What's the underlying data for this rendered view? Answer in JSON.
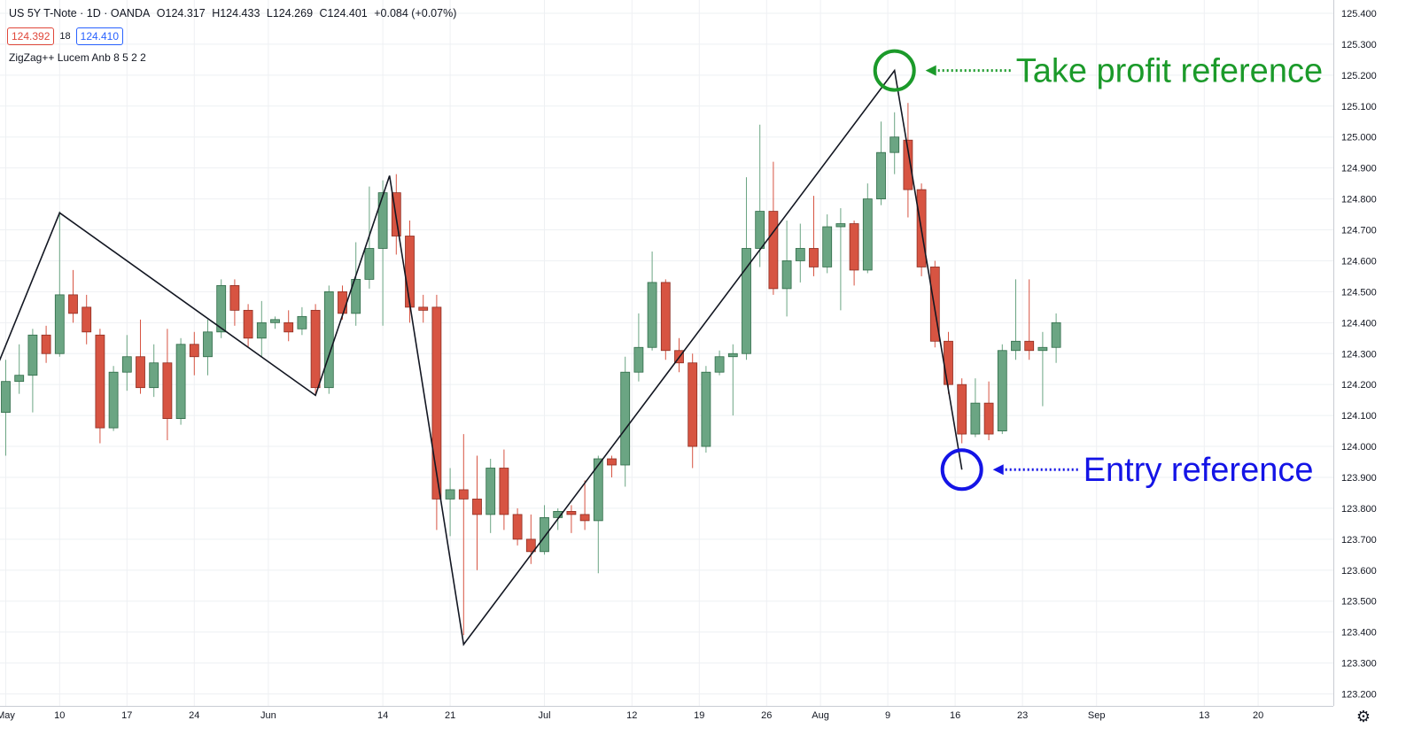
{
  "header": {
    "symbol": "US 5Y T-Note · 1D · OANDA",
    "open": "O124.317",
    "high": "H124.433",
    "low": "L124.269",
    "close": "C124.401",
    "change": "+0.084 (+0.07%)",
    "bid": "124.392",
    "spread": "18",
    "ask": "124.410",
    "indicator": "ZigZag++ Lucem Anb 8 5 2 2"
  },
  "colors": {
    "up": "#6ba583",
    "down": "#d75442",
    "zigzag": "#131722",
    "grid": "#eef0f3",
    "take_profit": "#1b9a2a",
    "entry": "#1414e6"
  },
  "chart_data": {
    "type": "candlestick",
    "ylim": [
      123.2,
      125.45
    ],
    "y_ticks": [
      "123.200",
      "123.300",
      "123.400",
      "123.500",
      "123.600",
      "123.700",
      "123.800",
      "123.900",
      "124.000",
      "124.100",
      "124.200",
      "124.300",
      "124.400",
      "124.500",
      "124.600",
      "124.700",
      "124.800",
      "124.900",
      "125.000",
      "125.100",
      "125.200",
      "125.300",
      "125.400"
    ],
    "x_ticks": [
      {
        "i": 0,
        "label": "May"
      },
      {
        "i": 4,
        "label": "10"
      },
      {
        "i": 9,
        "label": "17"
      },
      {
        "i": 14,
        "label": "24"
      },
      {
        "i": 19.5,
        "label": "Jun"
      },
      {
        "i": 28,
        "label": "14"
      },
      {
        "i": 33,
        "label": "21"
      },
      {
        "i": 40,
        "label": "Jul"
      },
      {
        "i": 46.5,
        "label": "12"
      },
      {
        "i": 51.5,
        "label": "19"
      },
      {
        "i": 56.5,
        "label": "26"
      },
      {
        "i": 60.5,
        "label": "Aug"
      },
      {
        "i": 65.5,
        "label": "9"
      },
      {
        "i": 70.5,
        "label": "16"
      },
      {
        "i": 75.5,
        "label": "23"
      },
      {
        "i": 81,
        "label": "Sep"
      },
      {
        "i": 89,
        "label": "13"
      },
      {
        "i": 93,
        "label": "20"
      }
    ],
    "candles": [
      [
        124.11,
        124.21,
        124.28,
        123.97
      ],
      [
        124.21,
        124.23,
        124.33,
        124.17
      ],
      [
        124.23,
        124.36,
        124.38,
        124.11
      ],
      [
        124.36,
        124.3,
        124.39,
        124.27
      ],
      [
        124.3,
        124.49,
        124.76,
        124.29
      ],
      [
        124.49,
        124.43,
        124.57,
        124.4
      ],
      [
        124.45,
        124.37,
        124.49,
        124.33
      ],
      [
        124.36,
        124.06,
        124.38,
        124.01
      ],
      [
        124.06,
        124.24,
        124.26,
        124.05
      ],
      [
        124.24,
        124.29,
        124.36,
        124.18
      ],
      [
        124.29,
        124.19,
        124.41,
        124.17
      ],
      [
        124.19,
        124.27,
        124.33,
        124.16
      ],
      [
        124.27,
        124.09,
        124.38,
        124.02
      ],
      [
        124.09,
        124.33,
        124.35,
        124.07
      ],
      [
        124.33,
        124.29,
        124.37,
        124.23
      ],
      [
        124.29,
        124.37,
        124.41,
        124.23
      ],
      [
        124.37,
        124.52,
        124.54,
        124.35
      ],
      [
        124.52,
        124.44,
        124.54,
        124.39
      ],
      [
        124.44,
        124.35,
        124.46,
        124.32
      ],
      [
        124.35,
        124.4,
        124.47,
        124.29
      ],
      [
        124.4,
        124.41,
        124.42,
        124.38
      ],
      [
        124.4,
        124.37,
        124.44,
        124.34
      ],
      [
        124.38,
        124.42,
        124.45,
        124.36
      ],
      [
        124.44,
        124.19,
        124.46,
        124.17
      ],
      [
        124.19,
        124.5,
        124.52,
        124.17
      ],
      [
        124.5,
        124.43,
        124.52,
        124.41
      ],
      [
        124.43,
        124.54,
        124.66,
        124.39
      ],
      [
        124.54,
        124.64,
        124.84,
        124.51
      ],
      [
        124.64,
        124.82,
        124.86,
        124.39
      ],
      [
        124.82,
        124.68,
        124.88,
        124.62
      ],
      [
        124.68,
        124.45,
        124.73,
        124.4
      ],
      [
        124.45,
        124.44,
        124.49,
        124.4
      ],
      [
        124.45,
        123.83,
        124.49,
        123.73
      ],
      [
        123.83,
        123.86,
        123.93,
        123.71
      ],
      [
        123.86,
        123.83,
        124.04,
        123.39
      ],
      [
        123.83,
        123.78,
        123.97,
        123.6
      ],
      [
        123.78,
        123.93,
        123.96,
        123.72
      ],
      [
        123.93,
        123.78,
        123.99,
        123.73
      ],
      [
        123.78,
        123.7,
        123.8,
        123.68
      ],
      [
        123.7,
        123.66,
        123.78,
        123.62
      ],
      [
        123.66,
        123.77,
        123.81,
        123.65
      ],
      [
        123.77,
        123.79,
        123.8,
        123.73
      ],
      [
        123.79,
        123.78,
        123.81,
        123.72
      ],
      [
        123.78,
        123.76,
        123.89,
        123.73
      ],
      [
        123.76,
        123.96,
        123.97,
        123.59
      ],
      [
        123.96,
        123.94,
        123.97,
        123.9
      ],
      [
        123.94,
        124.24,
        124.29,
        123.87
      ],
      [
        124.24,
        124.32,
        124.43,
        124.21
      ],
      [
        124.32,
        124.53,
        124.63,
        124.31
      ],
      [
        124.53,
        124.31,
        124.54,
        124.28
      ],
      [
        124.31,
        124.27,
        124.35,
        124.24
      ],
      [
        124.27,
        124.0,
        124.3,
        123.93
      ],
      [
        124.0,
        124.24,
        124.26,
        123.98
      ],
      [
        124.24,
        124.29,
        124.31,
        124.23
      ],
      [
        124.29,
        124.3,
        124.33,
        124.1
      ],
      [
        124.3,
        124.64,
        124.87,
        124.28
      ],
      [
        124.64,
        124.76,
        125.04,
        124.58
      ],
      [
        124.76,
        124.51,
        124.92,
        124.49
      ],
      [
        124.51,
        124.6,
        124.73,
        124.42
      ],
      [
        124.6,
        124.64,
        124.72,
        124.53
      ],
      [
        124.64,
        124.58,
        124.81,
        124.55
      ],
      [
        124.58,
        124.71,
        124.75,
        124.56
      ],
      [
        124.71,
        124.72,
        124.77,
        124.44
      ],
      [
        124.72,
        124.57,
        124.73,
        124.52
      ],
      [
        124.57,
        124.8,
        124.85,
        124.56
      ],
      [
        124.8,
        124.95,
        125.05,
        124.78
      ],
      [
        124.95,
        125.0,
        125.08,
        124.88
      ],
      [
        124.99,
        124.83,
        125.11,
        124.74
      ],
      [
        124.83,
        124.58,
        124.85,
        124.55
      ],
      [
        124.58,
        124.34,
        124.6,
        124.32
      ],
      [
        124.34,
        124.2,
        124.37,
        124.17
      ],
      [
        124.2,
        124.04,
        124.22,
        124.01
      ],
      [
        124.04,
        124.14,
        124.22,
        124.03
      ],
      [
        124.14,
        124.04,
        124.21,
        124.02
      ],
      [
        124.05,
        124.31,
        124.33,
        124.04
      ],
      [
        124.31,
        124.34,
        124.54,
        124.28
      ],
      [
        124.34,
        124.31,
        124.54,
        124.28
      ],
      [
        124.31,
        124.32,
        124.37,
        124.13
      ],
      [
        124.32,
        124.4,
        124.43,
        124.27
      ]
    ],
    "zigzag": [
      [
        -1.0,
        124.22
      ],
      [
        4.0,
        124.755
      ],
      [
        23.0,
        124.165
      ],
      [
        28.5,
        124.875
      ],
      [
        34.0,
        123.36
      ],
      [
        66.0,
        125.215
      ],
      [
        71.0,
        123.925
      ]
    ],
    "annotations": [
      {
        "text": "Take profit reference",
        "i": 66.0,
        "y": 125.215
      },
      {
        "text": "Entry reference",
        "i": 71.0,
        "y": 123.925
      }
    ]
  }
}
